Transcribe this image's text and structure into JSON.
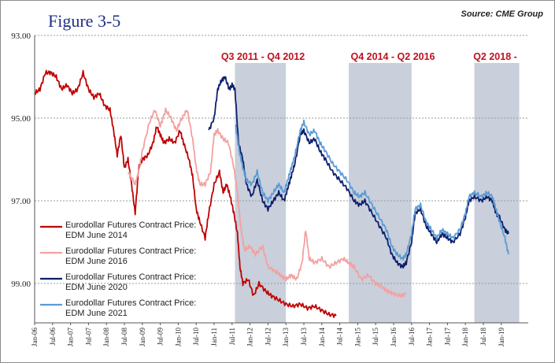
{
  "figure": {
    "title": "Figure 3-5",
    "source": "Source: CME Group"
  },
  "chart_data": {
    "type": "line",
    "y_inverted": true,
    "ylim": [
      93.0,
      100.2
    ],
    "y_ticks": [
      "93.00",
      "95.00",
      "97.00",
      "99.00"
    ],
    "x_ticks": [
      "Jan-06",
      "Jul-06",
      "Jan-07",
      "Jul-07",
      "Jan-08",
      "Jul-08",
      "Jan-09",
      "Jul-09",
      "Jan-10",
      "Jul-10",
      "Jan-11",
      "Jul-11",
      "Jan-12",
      "Jul-12",
      "Jan-13",
      "Jul-13",
      "Jan-14",
      "Jul-14",
      "Jan-15",
      "Jul-15",
      "Jan-16",
      "Jul-16",
      "Jan-17",
      "Jul-17",
      "Jan-18",
      "Jul-18",
      "Jan-19"
    ],
    "shaded_periods": [
      {
        "label": "Q3 2011 - Q4 2012",
        "start": 2011.58,
        "end": 2013.0
      },
      {
        "label": "Q4 2014 - Q2 2016",
        "start": 2014.75,
        "end": 2016.5
      },
      {
        "label": "Q2 2018 -",
        "start": 2018.25,
        "end": 2019.5
      }
    ],
    "series": [
      {
        "name": "Eurodollar Futures Contract Price: EDM June 2014",
        "color": "#c00000",
        "points": [
          [
            2006.0,
            94.4
          ],
          [
            2006.15,
            94.3
          ],
          [
            2006.3,
            93.9
          ],
          [
            2006.45,
            93.9
          ],
          [
            2006.6,
            94.0
          ],
          [
            2006.75,
            94.3
          ],
          [
            2006.9,
            94.2
          ],
          [
            2007.05,
            94.4
          ],
          [
            2007.2,
            94.3
          ],
          [
            2007.35,
            93.9
          ],
          [
            2007.5,
            94.3
          ],
          [
            2007.65,
            94.5
          ],
          [
            2007.8,
            94.4
          ],
          [
            2007.95,
            94.7
          ],
          [
            2008.1,
            94.8
          ],
          [
            2008.2,
            95.3
          ],
          [
            2008.3,
            95.9
          ],
          [
            2008.4,
            95.4
          ],
          [
            2008.5,
            96.2
          ],
          [
            2008.6,
            96.0
          ],
          [
            2008.7,
            96.6
          ],
          [
            2008.8,
            97.3
          ],
          [
            2008.9,
            96.2
          ],
          [
            2009.0,
            96.0
          ],
          [
            2009.15,
            95.9
          ],
          [
            2009.3,
            95.6
          ],
          [
            2009.4,
            95.2
          ],
          [
            2009.5,
            95.4
          ],
          [
            2009.6,
            95.6
          ],
          [
            2009.75,
            95.5
          ],
          [
            2009.9,
            95.6
          ],
          [
            2010.05,
            95.3
          ],
          [
            2010.15,
            95.6
          ],
          [
            2010.3,
            96.0
          ],
          [
            2010.4,
            96.4
          ],
          [
            2010.5,
            97.2
          ],
          [
            2010.6,
            97.5
          ],
          [
            2010.75,
            97.9
          ],
          [
            2010.85,
            97.3
          ],
          [
            2011.0,
            96.6
          ],
          [
            2011.15,
            96.3
          ],
          [
            2011.25,
            96.8
          ],
          [
            2011.35,
            96.6
          ],
          [
            2011.45,
            96.9
          ],
          [
            2011.55,
            97.3
          ],
          [
            2011.65,
            97.8
          ],
          [
            2011.72,
            98.6
          ],
          [
            2011.8,
            99.0
          ],
          [
            2011.95,
            98.9
          ],
          [
            2012.1,
            99.3
          ],
          [
            2012.25,
            99.0
          ],
          [
            2012.45,
            99.2
          ],
          [
            2012.6,
            99.3
          ],
          [
            2012.8,
            99.4
          ],
          [
            2013.0,
            99.5
          ],
          [
            2013.2,
            99.55
          ],
          [
            2013.4,
            99.5
          ],
          [
            2013.6,
            99.6
          ],
          [
            2013.8,
            99.55
          ],
          [
            2014.0,
            99.65
          ],
          [
            2014.2,
            99.75
          ],
          [
            2014.4,
            99.78
          ]
        ]
      },
      {
        "name": "Eurodollar Futures Contract Price: EDM June 2016",
        "color": "#f4a0a0",
        "points": [
          [
            2008.6,
            96.3
          ],
          [
            2008.8,
            96.6
          ],
          [
            2008.9,
            96.3
          ],
          [
            2009.0,
            95.8
          ],
          [
            2009.2,
            95.1
          ],
          [
            2009.35,
            94.8
          ],
          [
            2009.5,
            95.2
          ],
          [
            2009.65,
            94.8
          ],
          [
            2009.8,
            95.0
          ],
          [
            2009.95,
            95.3
          ],
          [
            2010.1,
            95.0
          ],
          [
            2010.25,
            94.8
          ],
          [
            2010.4,
            95.5
          ],
          [
            2010.5,
            96.2
          ],
          [
            2010.6,
            96.6
          ],
          [
            2010.75,
            96.6
          ],
          [
            2010.9,
            96.3
          ],
          [
            2011.0,
            95.4
          ],
          [
            2011.1,
            95.3
          ],
          [
            2011.25,
            95.5
          ],
          [
            2011.4,
            95.6
          ],
          [
            2011.55,
            96.2
          ],
          [
            2011.65,
            96.8
          ],
          [
            2011.75,
            97.7
          ],
          [
            2011.85,
            98.2
          ],
          [
            2012.0,
            98.1
          ],
          [
            2012.15,
            98.3
          ],
          [
            2012.35,
            98.1
          ],
          [
            2012.5,
            98.6
          ],
          [
            2012.7,
            98.7
          ],
          [
            2012.85,
            98.8
          ],
          [
            2013.0,
            98.9
          ],
          [
            2013.15,
            98.8
          ],
          [
            2013.3,
            98.9
          ],
          [
            2013.45,
            98.5
          ],
          [
            2013.55,
            97.7
          ],
          [
            2013.65,
            98.4
          ],
          [
            2013.8,
            98.5
          ],
          [
            2014.0,
            98.4
          ],
          [
            2014.2,
            98.6
          ],
          [
            2014.4,
            98.5
          ],
          [
            2014.6,
            98.4
          ],
          [
            2014.75,
            98.5
          ],
          [
            2014.9,
            98.6
          ],
          [
            2015.1,
            98.9
          ],
          [
            2015.3,
            98.8
          ],
          [
            2015.5,
            99.0
          ],
          [
            2015.7,
            99.1
          ],
          [
            2015.85,
            99.2
          ],
          [
            2016.0,
            99.25
          ],
          [
            2016.2,
            99.3
          ],
          [
            2016.35,
            99.25
          ]
        ]
      },
      {
        "name": "Eurodollar Futures Contract Price: EDM June 2020",
        "color": "#0d1f6b",
        "points": [
          [
            2010.85,
            95.3
          ],
          [
            2011.0,
            95.0
          ],
          [
            2011.1,
            94.3
          ],
          [
            2011.2,
            94.1
          ],
          [
            2011.3,
            94.0
          ],
          [
            2011.42,
            94.3
          ],
          [
            2011.5,
            94.2
          ],
          [
            2011.58,
            94.3
          ],
          [
            2011.68,
            95.6
          ],
          [
            2011.8,
            96.0
          ],
          [
            2011.9,
            96.6
          ],
          [
            2012.05,
            96.9
          ],
          [
            2012.2,
            96.5
          ],
          [
            2012.35,
            97.0
          ],
          [
            2012.5,
            97.2
          ],
          [
            2012.65,
            97.0
          ],
          [
            2012.8,
            96.8
          ],
          [
            2012.95,
            97.0
          ],
          [
            2013.05,
            96.7
          ],
          [
            2013.15,
            96.4
          ],
          [
            2013.25,
            96.1
          ],
          [
            2013.4,
            95.4
          ],
          [
            2013.5,
            95.3
          ],
          [
            2013.65,
            95.6
          ],
          [
            2013.8,
            95.5
          ],
          [
            2013.95,
            95.8
          ],
          [
            2014.1,
            96.0
          ],
          [
            2014.3,
            96.3
          ],
          [
            2014.5,
            96.5
          ],
          [
            2014.7,
            96.7
          ],
          [
            2014.9,
            97.0
          ],
          [
            2015.05,
            97.1
          ],
          [
            2015.2,
            97.0
          ],
          [
            2015.4,
            97.3
          ],
          [
            2015.6,
            97.6
          ],
          [
            2015.8,
            97.9
          ],
          [
            2015.95,
            98.3
          ],
          [
            2016.1,
            98.5
          ],
          [
            2016.25,
            98.6
          ],
          [
            2016.35,
            98.5
          ],
          [
            2016.5,
            98.0
          ],
          [
            2016.6,
            97.3
          ],
          [
            2016.75,
            97.2
          ],
          [
            2016.9,
            97.6
          ],
          [
            2017.05,
            97.8
          ],
          [
            2017.2,
            98.0
          ],
          [
            2017.35,
            97.8
          ],
          [
            2017.5,
            97.9
          ],
          [
            2017.65,
            98.0
          ],
          [
            2017.85,
            97.8
          ],
          [
            2018.0,
            97.4
          ],
          [
            2018.1,
            97.0
          ],
          [
            2018.25,
            96.9
          ],
          [
            2018.45,
            97.0
          ],
          [
            2018.6,
            96.9
          ],
          [
            2018.75,
            97.0
          ],
          [
            2018.85,
            97.3
          ],
          [
            2018.95,
            97.4
          ],
          [
            2019.1,
            97.7
          ],
          [
            2019.2,
            97.8
          ]
        ]
      },
      {
        "name": "Eurodollar Futures Contract Price: EDM June 2021",
        "color": "#5b9bd5",
        "points": [
          [
            2011.6,
            95.2
          ],
          [
            2011.7,
            95.8
          ],
          [
            2011.8,
            96.2
          ],
          [
            2011.9,
            96.5
          ],
          [
            2012.05,
            96.6
          ],
          [
            2012.2,
            96.3
          ],
          [
            2012.35,
            96.8
          ],
          [
            2012.5,
            97.0
          ],
          [
            2012.65,
            96.8
          ],
          [
            2012.8,
            96.6
          ],
          [
            2012.95,
            96.8
          ],
          [
            2013.05,
            96.5
          ],
          [
            2013.15,
            96.2
          ],
          [
            2013.25,
            95.9
          ],
          [
            2013.4,
            95.3
          ],
          [
            2013.5,
            95.1
          ],
          [
            2013.65,
            95.4
          ],
          [
            2013.8,
            95.3
          ],
          [
            2013.95,
            95.6
          ],
          [
            2014.1,
            95.8
          ],
          [
            2014.3,
            96.1
          ],
          [
            2014.5,
            96.3
          ],
          [
            2014.7,
            96.5
          ],
          [
            2014.9,
            96.8
          ],
          [
            2015.05,
            96.9
          ],
          [
            2015.2,
            96.8
          ],
          [
            2015.4,
            97.1
          ],
          [
            2015.6,
            97.4
          ],
          [
            2015.8,
            97.7
          ],
          [
            2015.95,
            98.1
          ],
          [
            2016.1,
            98.3
          ],
          [
            2016.25,
            98.4
          ],
          [
            2016.35,
            98.3
          ],
          [
            2016.5,
            97.8
          ],
          [
            2016.6,
            97.2
          ],
          [
            2016.75,
            97.1
          ],
          [
            2016.9,
            97.5
          ],
          [
            2017.05,
            97.7
          ],
          [
            2017.2,
            97.9
          ],
          [
            2017.35,
            97.7
          ],
          [
            2017.5,
            97.8
          ],
          [
            2017.65,
            97.9
          ],
          [
            2017.85,
            97.7
          ],
          [
            2018.0,
            97.3
          ],
          [
            2018.1,
            96.9
          ],
          [
            2018.25,
            96.8
          ],
          [
            2018.45,
            96.9
          ],
          [
            2018.6,
            96.8
          ],
          [
            2018.75,
            96.9
          ],
          [
            2018.85,
            97.2
          ],
          [
            2018.95,
            97.5
          ],
          [
            2019.1,
            97.9
          ],
          [
            2019.2,
            98.3
          ]
        ]
      }
    ]
  }
}
